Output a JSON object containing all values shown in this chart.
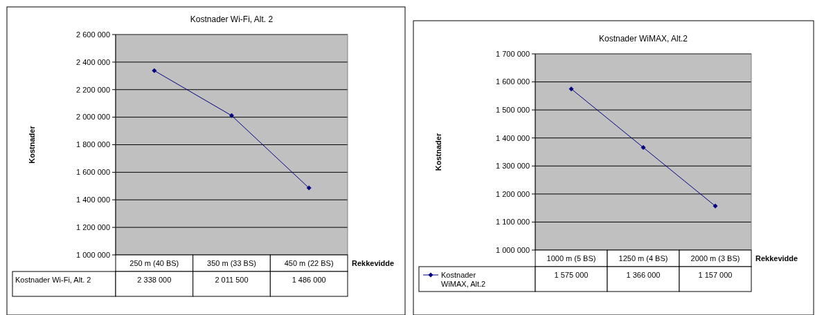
{
  "chart_data": [
    {
      "type": "line",
      "title": "Kostnader Wi-Fi, Alt. 2",
      "xlabel": "Rekkevidde",
      "ylabel": "Kostnader",
      "categories": [
        "250 m (40 BS)",
        "350 m (33 BS)",
        "450 m (22 BS)"
      ],
      "series": [
        {
          "name": "Kostnader Wi-Fi, Alt. 2",
          "color": "#000080",
          "values": [
            2338000,
            2011500,
            1486000
          ]
        }
      ],
      "ylim": [
        1000000,
        2600000
      ],
      "yticks": [
        {
          "value": 1000000,
          "label": "1 000 000"
        },
        {
          "value": 1200000,
          "label": "1 200 000"
        },
        {
          "value": 1400000,
          "label": "1 400 000"
        },
        {
          "value": 1600000,
          "label": "1 600 000"
        },
        {
          "value": 1800000,
          "label": "1 800 000"
        },
        {
          "value": 2000000,
          "label": "2 000 000"
        },
        {
          "value": 2200000,
          "label": "2 200 000"
        },
        {
          "value": 2400000,
          "label": "2 400 000"
        },
        {
          "value": 2600000,
          "label": "2 600 000"
        }
      ],
      "grid": "y",
      "marker": "diamond",
      "data_labels": true,
      "legend": false
    },
    {
      "type": "line",
      "title": "Kostnader WiMAX, Alt.2",
      "xlabel": "Rekkevidde",
      "ylabel": "Kostnader",
      "categories": [
        "1000 m (5 BS)",
        "1250 m (4 BS)",
        "2000 m (3 BS)"
      ],
      "series": [
        {
          "name": "Kostnader WiMAX, Alt.2",
          "color": "#000080",
          "values": [
            1575000,
            1366000,
            1157000
          ]
        }
      ],
      "ylim": [
        1000000,
        1700000
      ],
      "yticks": [
        {
          "value": 1000000,
          "label": "1 000 000"
        },
        {
          "value": 1100000,
          "label": "1 100 000"
        },
        {
          "value": 1200000,
          "label": "1 200 000"
        },
        {
          "value": 1300000,
          "label": "1 300 000"
        },
        {
          "value": 1400000,
          "label": "1 400 000"
        },
        {
          "value": 1500000,
          "label": "1 500 000"
        },
        {
          "value": 1600000,
          "label": "1 600 000"
        },
        {
          "value": 1700000,
          "label": "1 700 000"
        }
      ],
      "grid": "y",
      "marker": "diamond",
      "data_labels": true,
      "legend": "bottom"
    }
  ]
}
